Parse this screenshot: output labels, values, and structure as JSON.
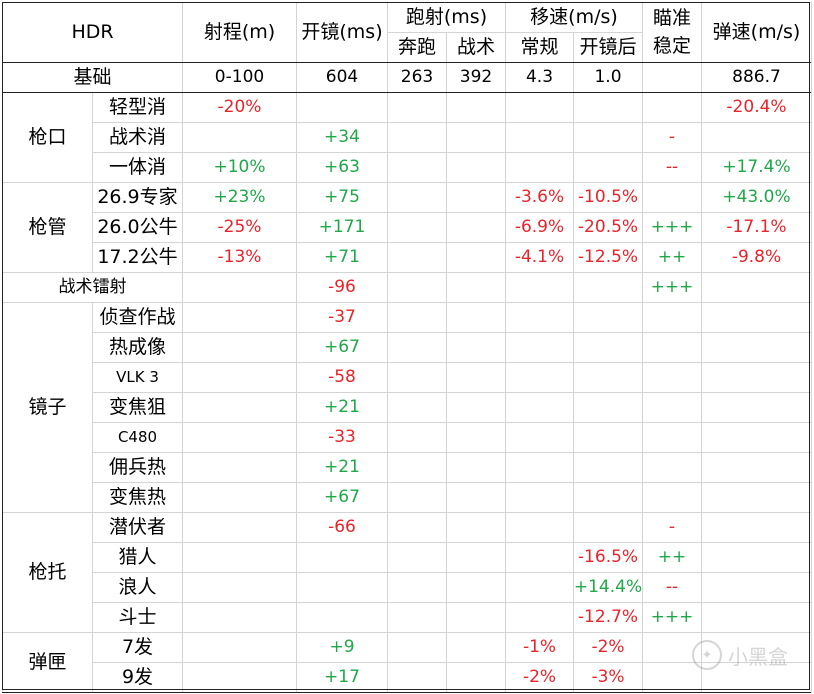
{
  "colors": {
    "positive": "#1fa847",
    "negative": "#e8232a",
    "text": "#000000"
  },
  "header": {
    "title": "HDR",
    "range": "射程(m)",
    "ads": "开镜(ms)",
    "sprint_fire": "跑射(ms)",
    "sprint_sub1": "奔跑",
    "sprint_sub2": "战术",
    "move_speed": "移速(m/s)",
    "move_sub1": "常规",
    "move_sub2": "开镜后",
    "aim_stability_line1": "瞄准",
    "aim_stability_line2": "稳定",
    "bullet_velocity": "弹速(m/s)"
  },
  "base": {
    "label": "基础",
    "range": "0-100",
    "ads": "604",
    "sprint_run": "263",
    "sprint_tactical": "392",
    "move_normal": "4.3",
    "move_ads": "1.0",
    "stability": "",
    "velocity": "886.7"
  },
  "groups": [
    {
      "name": "枪口",
      "rows": [
        {
          "label": "轻型消",
          "range": "-20%",
          "ads": "",
          "sprint_run": "",
          "sprint_tactical": "",
          "move_normal": "",
          "move_ads": "",
          "stability": "",
          "velocity": "-20.4%"
        },
        {
          "label": "战术消",
          "range": "",
          "ads": "+34",
          "sprint_run": "",
          "sprint_tactical": "",
          "move_normal": "",
          "move_ads": "",
          "stability": "-",
          "velocity": ""
        },
        {
          "label": "一体消",
          "range": "+10%",
          "ads": "+63",
          "sprint_run": "",
          "sprint_tactical": "",
          "move_normal": "",
          "move_ads": "",
          "stability": "--",
          "velocity": "+17.4%"
        }
      ]
    },
    {
      "name": "枪管",
      "rows": [
        {
          "label": "26.9专家",
          "range": "+23%",
          "ads": "+75",
          "sprint_run": "",
          "sprint_tactical": "",
          "move_normal": "-3.6%",
          "move_ads": "-10.5%",
          "stability": "",
          "velocity": "+43.0%"
        },
        {
          "label": "26.0公牛",
          "range": "-25%",
          "ads": "+171",
          "sprint_run": "",
          "sprint_tactical": "",
          "move_normal": "-6.9%",
          "move_ads": "-20.5%",
          "stability": "+++",
          "velocity": "-17.1%"
        },
        {
          "label": "17.2公牛",
          "range": "-13%",
          "ads": "+71",
          "sprint_run": "",
          "sprint_tactical": "",
          "move_normal": "-4.1%",
          "move_ads": "-12.5%",
          "stability": "++",
          "velocity": "-9.8%"
        }
      ]
    },
    {
      "name": "",
      "merged_label": "战术镭射",
      "rows": [
        {
          "label": "",
          "range": "",
          "ads": "-96",
          "sprint_run": "",
          "sprint_tactical": "",
          "move_normal": "",
          "move_ads": "",
          "stability": "+++",
          "velocity": ""
        }
      ]
    },
    {
      "name": "镜子",
      "rows": [
        {
          "label": "侦查作战",
          "range": "",
          "ads": "-37",
          "sprint_run": "",
          "sprint_tactical": "",
          "move_normal": "",
          "move_ads": "",
          "stability": "",
          "velocity": ""
        },
        {
          "label": "热成像",
          "range": "",
          "ads": "+67",
          "sprint_run": "",
          "sprint_tactical": "",
          "move_normal": "",
          "move_ads": "",
          "stability": "",
          "velocity": ""
        },
        {
          "label": "VLK 3",
          "range": "",
          "ads": "-58",
          "sprint_run": "",
          "sprint_tactical": "",
          "move_normal": "",
          "move_ads": "",
          "stability": "",
          "velocity": ""
        },
        {
          "label": "变焦狙",
          "range": "",
          "ads": "+21",
          "sprint_run": "",
          "sprint_tactical": "",
          "move_normal": "",
          "move_ads": "",
          "stability": "",
          "velocity": ""
        },
        {
          "label": "C480",
          "range": "",
          "ads": "-33",
          "sprint_run": "",
          "sprint_tactical": "",
          "move_normal": "",
          "move_ads": "",
          "stability": "",
          "velocity": ""
        },
        {
          "label": "佣兵热",
          "range": "",
          "ads": "+21",
          "sprint_run": "",
          "sprint_tactical": "",
          "move_normal": "",
          "move_ads": "",
          "stability": "",
          "velocity": ""
        },
        {
          "label": "变焦热",
          "range": "",
          "ads": "+67",
          "sprint_run": "",
          "sprint_tactical": "",
          "move_normal": "",
          "move_ads": "",
          "stability": "",
          "velocity": ""
        }
      ]
    },
    {
      "name": "枪托",
      "rows": [
        {
          "label": "潜伏者",
          "range": "",
          "ads": "-66",
          "sprint_run": "",
          "sprint_tactical": "",
          "move_normal": "",
          "move_ads": "",
          "stability": "-",
          "velocity": ""
        },
        {
          "label": "猎人",
          "range": "",
          "ads": "",
          "sprint_run": "",
          "sprint_tactical": "",
          "move_normal": "",
          "move_ads": "-16.5%",
          "stability": "++",
          "velocity": ""
        },
        {
          "label": "浪人",
          "range": "",
          "ads": "",
          "sprint_run": "",
          "sprint_tactical": "",
          "move_normal": "",
          "move_ads": "+14.4%",
          "stability": "--",
          "velocity": ""
        },
        {
          "label": "斗士",
          "range": "",
          "ads": "",
          "sprint_run": "",
          "sprint_tactical": "",
          "move_normal": "",
          "move_ads": "-12.7%",
          "stability": "+++",
          "velocity": ""
        }
      ]
    },
    {
      "name": "弹匣",
      "rows": [
        {
          "label": "7发",
          "range": "",
          "ads": "+9",
          "sprint_run": "",
          "sprint_tactical": "",
          "move_normal": "-1%",
          "move_ads": "-2%",
          "stability": "",
          "velocity": ""
        },
        {
          "label": "9发",
          "range": "",
          "ads": "+17",
          "sprint_run": "",
          "sprint_tactical": "",
          "move_normal": "-2%",
          "move_ads": "-3%",
          "stability": "",
          "velocity": ""
        }
      ]
    }
  ],
  "watermark": {
    "text": "小黑盒",
    "icon": "heybox-logo-icon"
  }
}
